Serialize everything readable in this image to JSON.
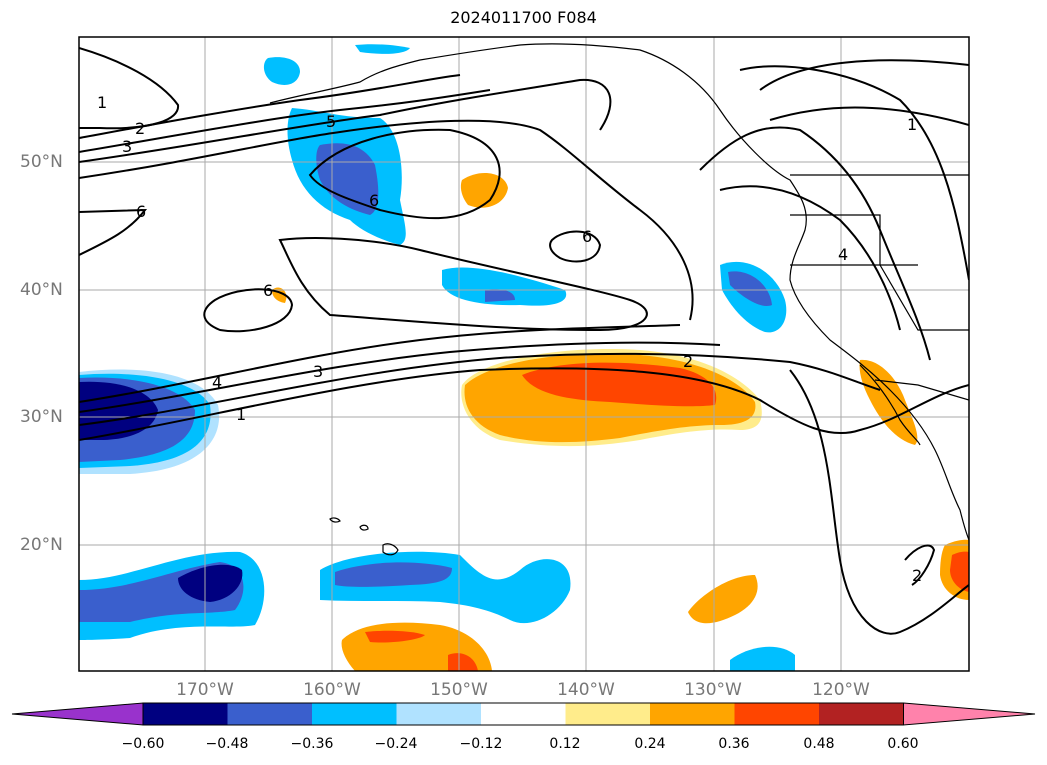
{
  "title": "2024011700 F084",
  "lat_labels": [
    "50°N",
    "40°N",
    "30°N",
    "20°N"
  ],
  "lon_labels": [
    "170°W",
    "160°W",
    "150°W",
    "140°W",
    "130°W",
    "120°W"
  ],
  "colorbar": {
    "ticks": [
      "−0.60",
      "−0.48",
      "−0.36",
      "−0.24",
      "−0.12",
      "0.12",
      "0.24",
      "0.36",
      "0.48",
      "0.60"
    ],
    "colors": [
      "#9932cc",
      "#000080",
      "#3a5fcd",
      "#00bfff",
      "#b0e2ff",
      "#ffffff",
      "#ffec8b",
      "#ffa500",
      "#ff4500",
      "#b22222",
      "#ff82ab"
    ]
  },
  "contour_labels": [
    "1",
    "2",
    "3",
    "4",
    "5",
    "6"
  ]
}
